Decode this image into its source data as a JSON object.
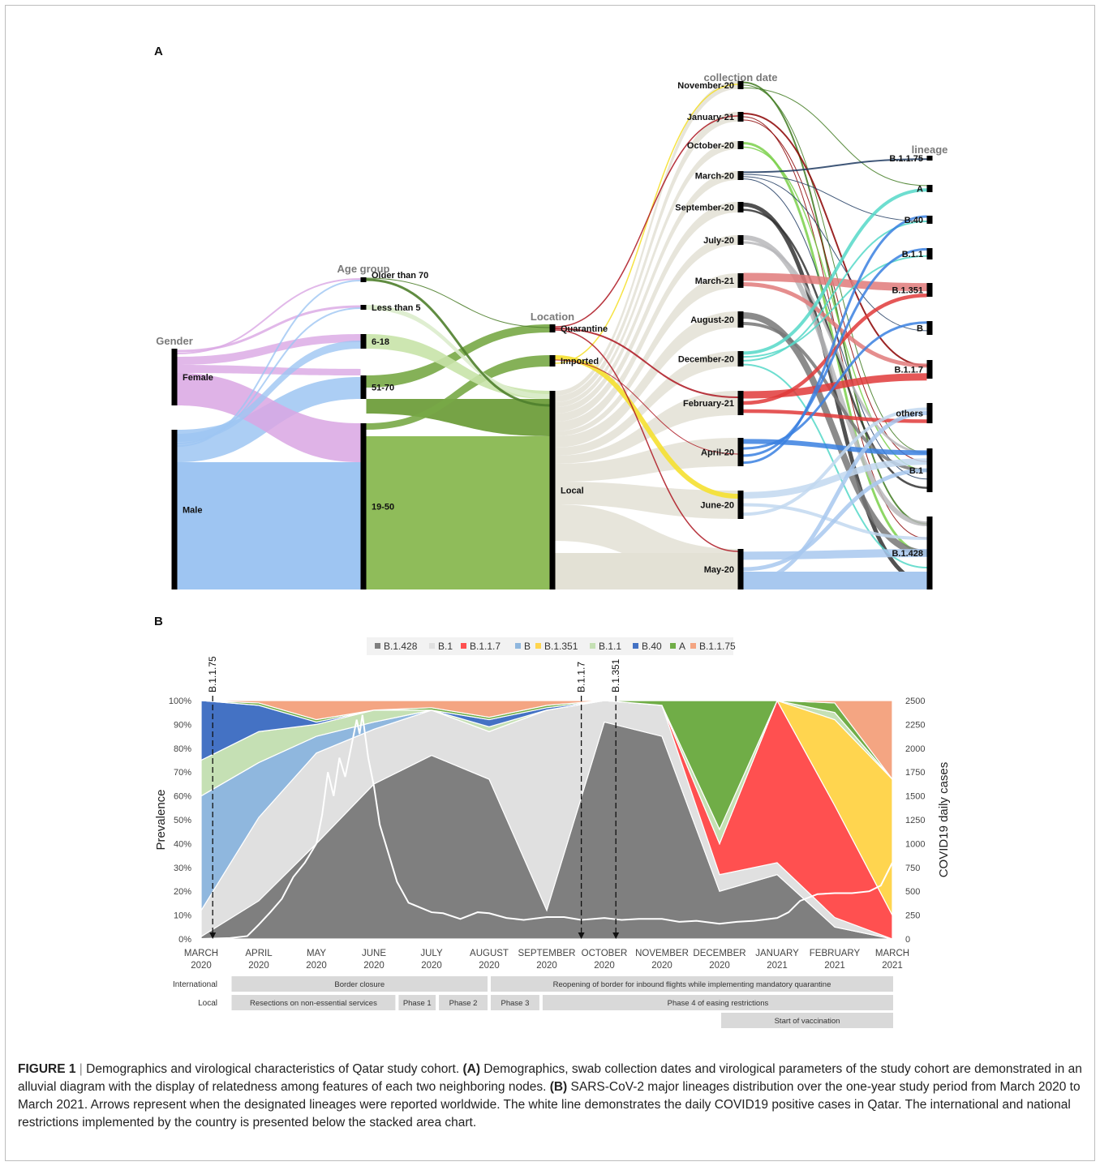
{
  "panels": {
    "a": "A",
    "b": "B"
  },
  "alluvial": {
    "columns": [
      {
        "title": "Gender",
        "nodes": [
          "Female",
          "Male"
        ]
      },
      {
        "title": "Age group",
        "nodes": [
          "Older than 70",
          "Less than 5",
          "6-18",
          "51-70",
          "19-50"
        ]
      },
      {
        "title": "Location",
        "nodes": [
          "Quarantine",
          "Imported",
          "Local"
        ]
      },
      {
        "title": "collection date",
        "nodes": [
          "November-20",
          "January-21",
          "October-20",
          "March-20",
          "September-20",
          "July-20",
          "March-21",
          "August-20",
          "December-20",
          "February-21",
          "April-20",
          "June-20",
          "May-20"
        ]
      },
      {
        "title": "lineage",
        "nodes": [
          "B.1.1.75",
          "A",
          "B.40",
          "B.1.1",
          "B.1.351",
          "B",
          "B.1.1.7",
          "others",
          "B.1",
          "B.1.428"
        ]
      }
    ]
  },
  "chart_data": {
    "type": "area",
    "legend": [
      "B.1.428",
      "B.1",
      "B.1.1.7",
      "B",
      "B.1.351",
      "B.1.1",
      "B.40",
      "A",
      "B.1.1.75"
    ],
    "legend_colors": [
      "#7f7f7f",
      "#e0e0e0",
      "#ff5050",
      "#8fb7de",
      "#ffd54f",
      "#c5e0b4",
      "#4472c4",
      "#70ad47",
      "#f4a582"
    ],
    "categories": [
      "MARCH 2020",
      "APRIL 2020",
      "MAY 2020",
      "JUNE 2020",
      "JULY 2020",
      "AUGUST 2020",
      "SEPTEMBER 2020",
      "OCTOBER 2020",
      "NOVEMBER 2020",
      "DECEMBER 2020",
      "JANUARY 2021",
      "FEBRUARY 2021",
      "MARCH 2021"
    ],
    "x_labels": [
      [
        "MARCH",
        "2020"
      ],
      [
        "APRIL",
        "2020"
      ],
      [
        "MAY",
        "2020"
      ],
      [
        "JUNE",
        "2020"
      ],
      [
        "JULY",
        "2020"
      ],
      [
        "AUGUST",
        "2020"
      ],
      [
        "SEPTEMBER",
        "2020"
      ],
      [
        "OCTOBER",
        "2020"
      ],
      [
        "NOVEMBER",
        "2020"
      ],
      [
        "DECEMBER",
        "2020"
      ],
      [
        "JANUARY",
        "2021"
      ],
      [
        "FEBRUARY",
        "2021"
      ],
      [
        "MARCH",
        "2021"
      ]
    ],
    "series": [
      {
        "name": "B.1.428",
        "values": [
          1,
          16,
          40,
          65,
          77,
          67,
          12,
          91,
          85,
          20,
          27,
          5,
          0
        ]
      },
      {
        "name": "B.1",
        "values": [
          11,
          35,
          38,
          23,
          19,
          20,
          84,
          9,
          13,
          7,
          5,
          4,
          0
        ]
      },
      {
        "name": "B.1.1.7",
        "values": [
          0,
          0,
          0,
          0,
          0,
          0,
          0,
          0,
          0,
          13,
          68,
          47,
          10
        ]
      },
      {
        "name": "B",
        "values": [
          48,
          23,
          7,
          3,
          0,
          0,
          0,
          0,
          0,
          0,
          0,
          0,
          0
        ]
      },
      {
        "name": "B.1.351",
        "values": [
          0,
          0,
          0,
          0,
          0,
          0,
          0,
          0,
          0,
          0,
          0,
          36,
          57
        ]
      },
      {
        "name": "B.1.1",
        "values": [
          15,
          13,
          5,
          5,
          0,
          2,
          0,
          0,
          0,
          6,
          0,
          3,
          0
        ]
      },
      {
        "name": "B.40",
        "values": [
          25,
          11,
          1,
          0,
          0,
          3,
          1,
          0,
          0,
          0,
          0,
          0,
          0
        ]
      },
      {
        "name": "A",
        "values": [
          0,
          1,
          1,
          0,
          1,
          1,
          1,
          0,
          2,
          54,
          0,
          4,
          0
        ]
      },
      {
        "name": "B.1.1.75",
        "values": [
          0,
          1,
          8,
          4,
          3,
          7,
          2,
          0,
          0,
          0,
          0,
          1,
          33
        ]
      }
    ],
    "ylabel_left": "Prevalence",
    "ylabel_right": "COVID19 daily cases",
    "y_left_ticks": [
      "0%",
      "10%",
      "20%",
      "30%",
      "40%",
      "50%",
      "60%",
      "70%",
      "80%",
      "90%",
      "100%"
    ],
    "y_right_ticks": [
      "0",
      "250",
      "500",
      "750",
      "1000",
      "1250",
      "1500",
      "1750",
      "2000",
      "2250",
      "2500"
    ],
    "ylim_left": [
      0,
      100
    ],
    "ylim_right": [
      0,
      2500
    ],
    "daily_cases": [
      [
        0,
        0
      ],
      [
        0.5,
        10
      ],
      [
        0.8,
        30
      ],
      [
        1.0,
        150
      ],
      [
        1.2,
        280
      ],
      [
        1.4,
        420
      ],
      [
        1.6,
        650
      ],
      [
        1.8,
        800
      ],
      [
        2.0,
        1000
      ],
      [
        2.1,
        1300
      ],
      [
        2.2,
        1750
      ],
      [
        2.3,
        1500
      ],
      [
        2.4,
        1900
      ],
      [
        2.5,
        1700
      ],
      [
        2.6,
        2000
      ],
      [
        2.7,
        2300
      ],
      [
        2.75,
        2150
      ],
      [
        2.8,
        2350
      ],
      [
        2.9,
        1900
      ],
      [
        3.0,
        1600
      ],
      [
        3.1,
        1200
      ],
      [
        3.2,
        1000
      ],
      [
        3.4,
        600
      ],
      [
        3.6,
        380
      ],
      [
        3.8,
        330
      ],
      [
        4.0,
        280
      ],
      [
        4.2,
        270
      ],
      [
        4.5,
        210
      ],
      [
        4.8,
        280
      ],
      [
        5.0,
        270
      ],
      [
        5.3,
        220
      ],
      [
        5.6,
        200
      ],
      [
        6.0,
        230
      ],
      [
        6.3,
        230
      ],
      [
        6.6,
        200
      ],
      [
        7.0,
        220
      ],
      [
        7.3,
        200
      ],
      [
        7.6,
        210
      ],
      [
        8.0,
        210
      ],
      [
        8.3,
        180
      ],
      [
        8.6,
        190
      ],
      [
        9.0,
        160
      ],
      [
        9.3,
        180
      ],
      [
        9.6,
        190
      ],
      [
        10.0,
        220
      ],
      [
        10.2,
        280
      ],
      [
        10.4,
        400
      ],
      [
        10.7,
        470
      ],
      [
        11.0,
        480
      ],
      [
        11.3,
        480
      ],
      [
        11.6,
        500
      ],
      [
        11.8,
        560
      ],
      [
        12.0,
        800
      ]
    ],
    "arrows": [
      {
        "label": "B.1.1.75",
        "x": 0.2
      },
      {
        "label": "B.1.1.7",
        "x": 6.6
      },
      {
        "label": "B.1.351",
        "x": 7.2
      }
    ],
    "timeline": {
      "rows": [
        {
          "label": "International",
          "bars": [
            {
              "text": "Border closure",
              "start": 0.5,
              "end": 5.0
            },
            {
              "text": "Reopening of border for inbound  flights while implementing mandatory quarantine",
              "start": 5.0,
              "end": 12.0
            }
          ]
        },
        {
          "label": "Local",
          "bars": [
            {
              "text": "Resections on non-essential services",
              "start": 0.5,
              "end": 3.4
            },
            {
              "text": "Phase 1",
              "start": 3.4,
              "end": 4.1
            },
            {
              "text": "Phase 2",
              "start": 4.1,
              "end": 5.0
            },
            {
              "text": "Phase 3",
              "start": 5.0,
              "end": 5.9
            },
            {
              "text": "Phase 4 of easing restrictions",
              "start": 5.9,
              "end": 12.0
            }
          ]
        },
        {
          "label": "",
          "bars": [
            {
              "text": "Start of vaccination",
              "start": 9.0,
              "end": 12.0
            }
          ]
        }
      ]
    }
  },
  "caption": {
    "figure_label": "FIGURE 1",
    "separator": " | ",
    "title": "Demographics and virological characteristics of Qatar study cohort. ",
    "a_label": "(A)",
    "a_text": " Demographics, swab collection dates and virological parameters of the study cohort are demonstrated in an alluvial diagram with the display of relatedness among features of each two neighboring nodes. ",
    "b_label": "(B)",
    "b_text": " SARS-CoV-2 major lineages distribution over the one-year study period from March 2020 to March 2021. Arrows represent when the designated lineages were reported worldwide. The white line demonstrates the daily COVID19 positive cases in Qatar. The international and national restrictions implemented by the country is presented below the stacked area chart."
  }
}
